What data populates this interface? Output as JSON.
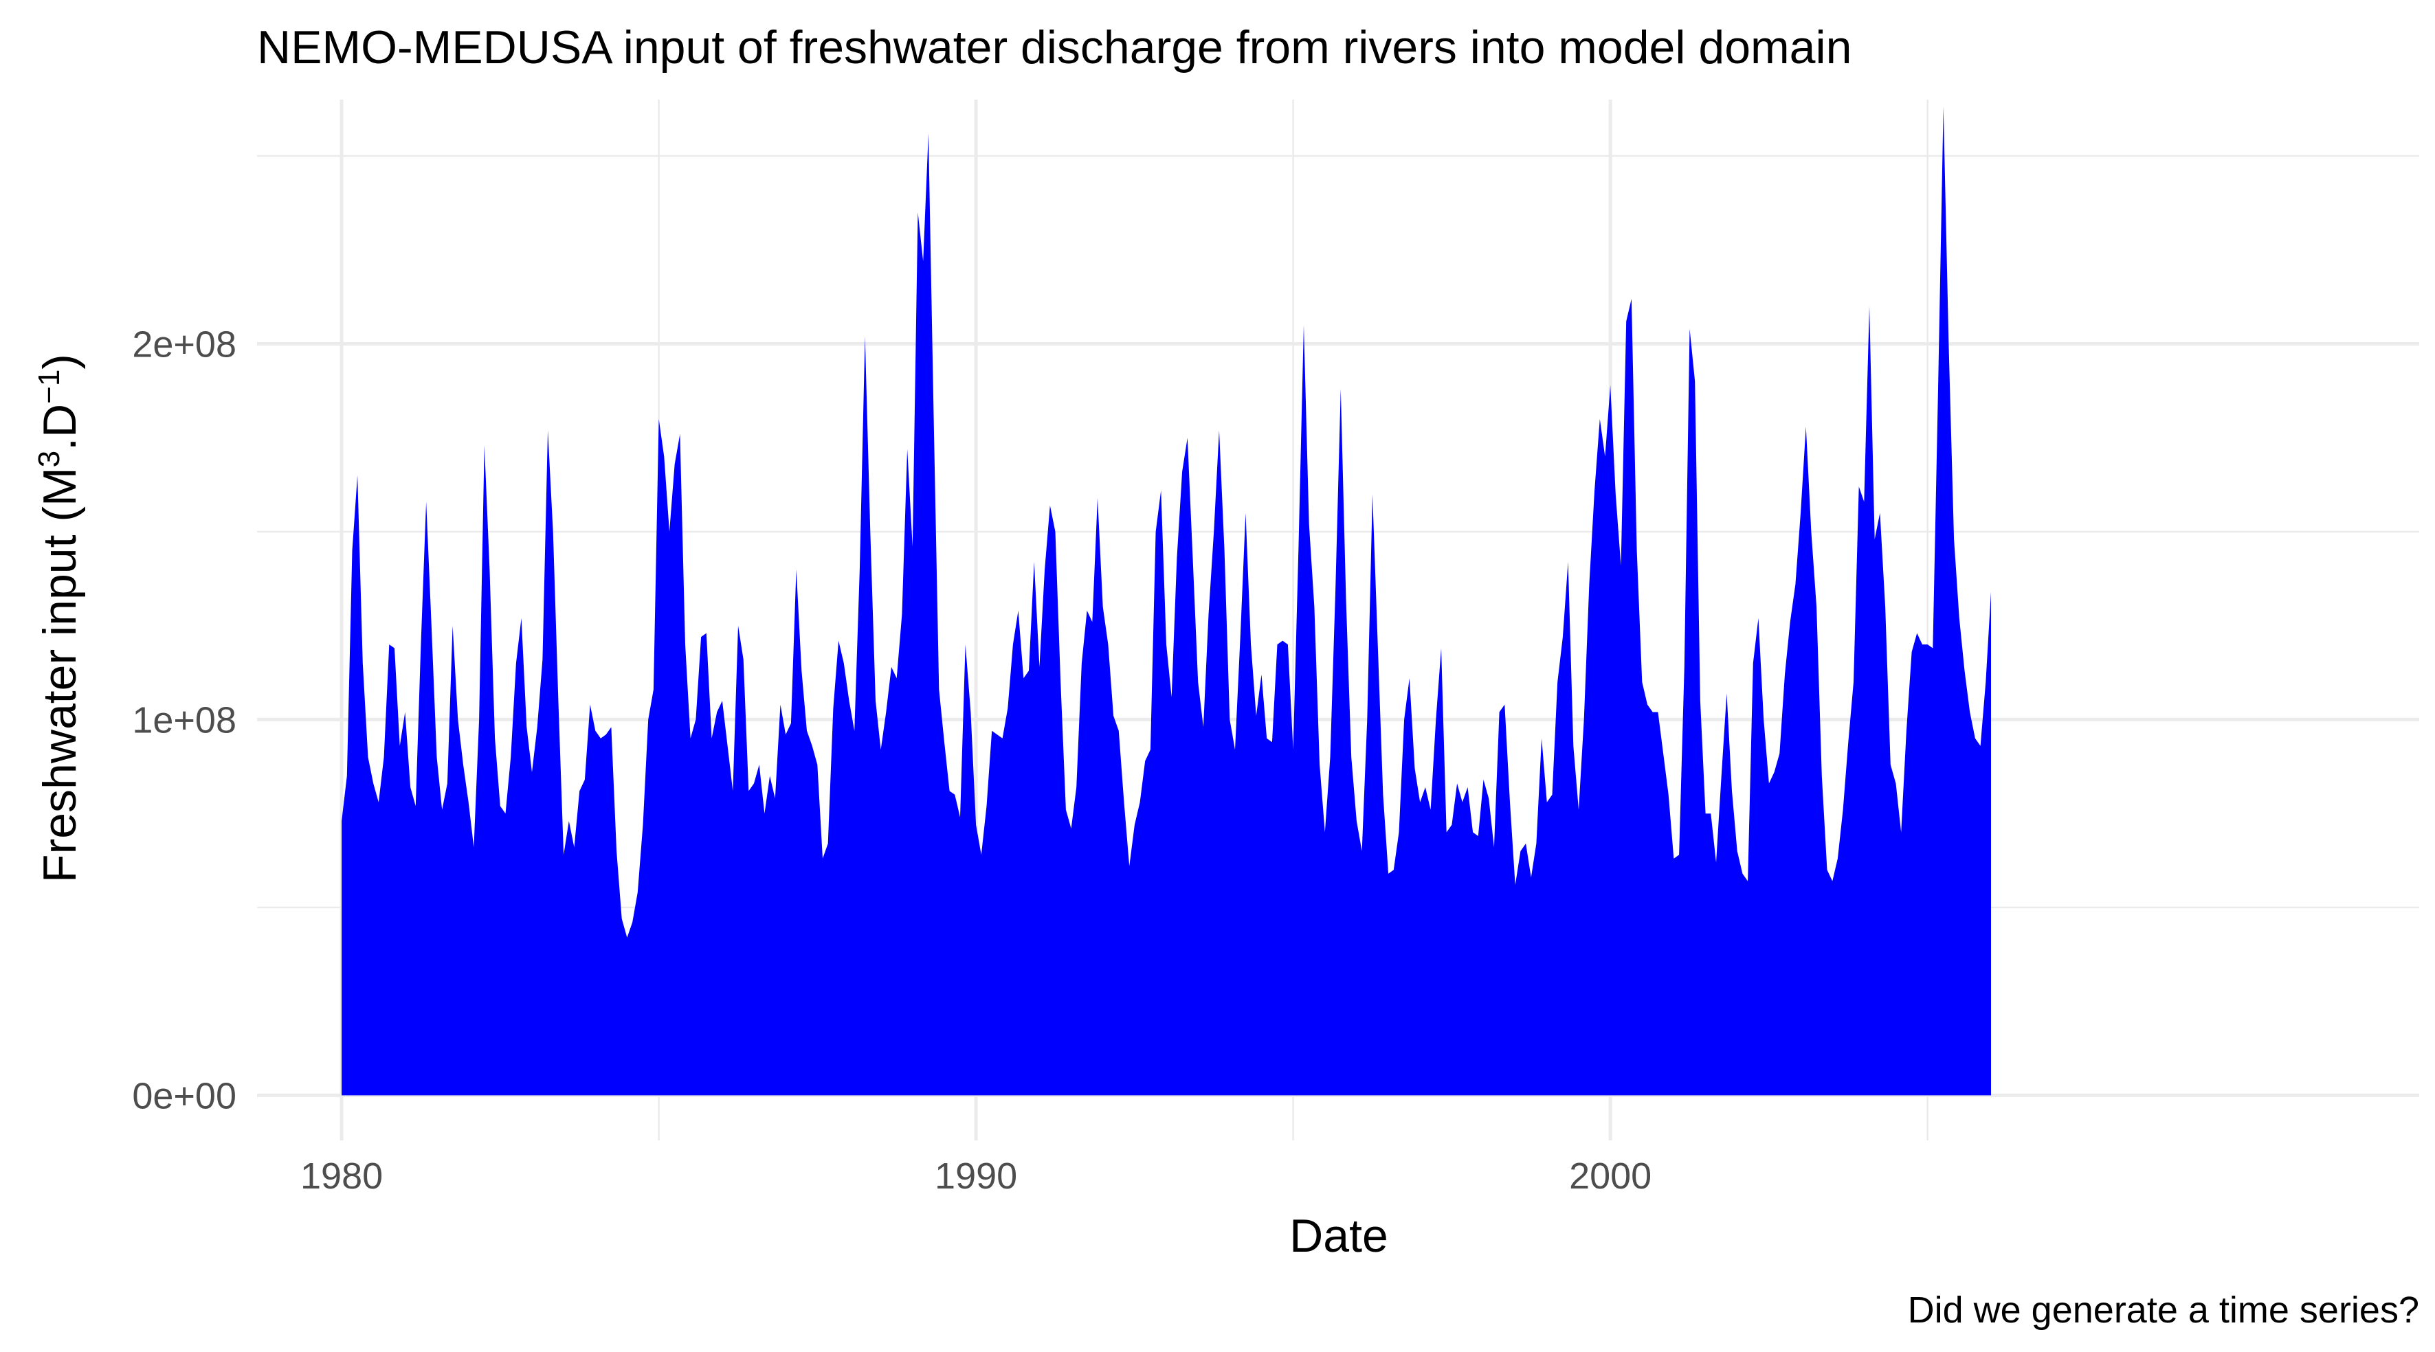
{
  "colors": {
    "fill": "#0000ff",
    "grid": "#ebebeb",
    "tick_text": "#4d4d4d",
    "text": "#000000"
  },
  "chart_data": {
    "type": "area",
    "title": "NEMO-MEDUSA input of freshwater discharge from rivers into model domain",
    "xlabel": "Date",
    "ylabel_main": "Freshwater input (M",
    "ylabel_sup1": "3",
    "ylabel_mid": ".D",
    "ylabel_sup2": "−1",
    "ylabel_end": ")",
    "caption": "Did we generate a time series?",
    "x_scale": "date (monthly, 1980-01 to 2006-01)",
    "xlim": [
      "1978-09",
      "2012-10"
    ],
    "ylim": [
      -12000000,
      265000000
    ],
    "x_ticks": [
      {
        "label": "1980",
        "year": 1980
      },
      {
        "label": "1990",
        "year": 1990
      },
      {
        "label": "2000",
        "year": 2000
      }
    ],
    "y_ticks": [
      {
        "label": "0e+00",
        "value": 0
      },
      {
        "label": "1e+08",
        "value": 100000000
      },
      {
        "label": "2e+08",
        "value": 200000000
      }
    ],
    "grid": true,
    "start": "1980-01",
    "values": [
      73000000,
      85000000,
      145000000,
      165000000,
      115000000,
      90000000,
      83000000,
      78000000,
      90000000,
      120000000,
      119000000,
      93000000,
      102000000,
      82000000,
      77000000,
      120000000,
      158000000,
      125000000,
      90000000,
      76000000,
      83000000,
      125000000,
      100000000,
      88000000,
      78000000,
      66000000,
      100000000,
      173000000,
      140000000,
      95000000,
      77000000,
      75000000,
      90000000,
      115000000,
      127000000,
      98000000,
      86000000,
      98000000,
      116000000,
      177000000,
      150000000,
      105000000,
      64000000,
      73000000,
      66000000,
      81000000,
      84000000,
      104000000,
      97000000,
      95000000,
      96000000,
      98000000,
      65000000,
      47000000,
      42000000,
      46000000,
      54000000,
      72000000,
      100000000,
      108000000,
      180000000,
      170000000,
      150000000,
      168000000,
      176000000,
      120000000,
      95000000,
      100000000,
      122000000,
      123000000,
      95000000,
      102000000,
      105000000,
      93000000,
      81000000,
      125000000,
      116000000,
      81000000,
      83000000,
      88000000,
      75000000,
      85000000,
      79000000,
      104000000,
      96000000,
      99000000,
      140000000,
      113000000,
      97000000,
      93000000,
      88000000,
      63000000,
      67000000,
      103000000,
      121000000,
      115000000,
      105000000,
      97000000,
      140000000,
      202000000,
      150000000,
      105000000,
      92000000,
      102000000,
      114000000,
      111000000,
      128000000,
      172000000,
      146000000,
      235000000,
      222000000,
      256000000,
      180000000,
      108000000,
      94000000,
      81000000,
      80000000,
      74000000,
      120000000,
      102000000,
      72000000,
      64000000,
      77000000,
      97000000,
      96000000,
      95000000,
      103000000,
      120000000,
      129000000,
      111000000,
      113000000,
      142000000,
      114000000,
      140000000,
      157000000,
      150000000,
      110000000,
      76000000,
      71000000,
      82000000,
      115000000,
      129000000,
      126000000,
      159000000,
      130000000,
      120000000,
      101000000,
      97000000,
      78000000,
      61000000,
      72000000,
      78000000,
      89000000,
      92000000,
      150000000,
      161000000,
      120000000,
      106000000,
      143000000,
      166000000,
      175000000,
      143000000,
      110000000,
      98000000,
      128000000,
      150000000,
      177000000,
      145000000,
      100000000,
      92000000,
      122000000,
      155000000,
      120000000,
      101000000,
      112000000,
      95000000,
      94000000,
      120000000,
      121000000,
      120000000,
      92000000,
      145000000,
      205000000,
      152000000,
      130000000,
      88000000,
      70000000,
      90000000,
      135000000,
      188000000,
      132000000,
      90000000,
      73000000,
      65000000,
      100000000,
      160000000,
      120000000,
      80000000,
      59000000,
      60000000,
      70000000,
      100000000,
      111000000,
      87000000,
      78000000,
      82000000,
      76000000,
      100000000,
      119000000,
      70000000,
      72000000,
      83000000,
      78000000,
      82000000,
      70000000,
      69000000,
      84000000,
      79000000,
      66000000,
      102000000,
      104000000,
      78000000,
      56000000,
      65000000,
      67000000,
      58000000,
      67000000,
      95000000,
      78000000,
      80000000,
      110000000,
      122000000,
      142000000,
      93000000,
      76000000,
      100000000,
      136000000,
      161000000,
      180000000,
      170000000,
      189000000,
      160000000,
      141000000,
      206000000,
      212000000,
      145000000,
      110000000,
      104000000,
      102000000,
      102000000,
      91000000,
      80000000,
      63000000,
      64000000,
      114000000,
      204000000,
      190000000,
      105000000,
      75000000,
      75000000,
      62000000,
      85000000,
      107000000,
      81000000,
      65000000,
      59000000,
      57000000,
      115000000,
      127000000,
      100000000,
      83000000,
      86000000,
      91000000,
      112000000,
      126000000,
      136000000,
      155000000,
      178000000,
      150000000,
      130000000,
      85000000,
      60000000,
      57000000,
      63000000,
      76000000,
      94000000,
      110000000,
      162000000,
      158000000,
      210000000,
      148000000,
      155000000,
      130000000,
      88000000,
      83000000,
      70000000,
      97000000,
      118000000,
      123000000,
      120000000,
      120000000,
      119000000,
      188000000,
      263000000,
      200000000,
      148000000,
      127000000,
      113000000,
      102000000,
      95000000,
      93000000,
      110000000,
      134000000
    ]
  }
}
